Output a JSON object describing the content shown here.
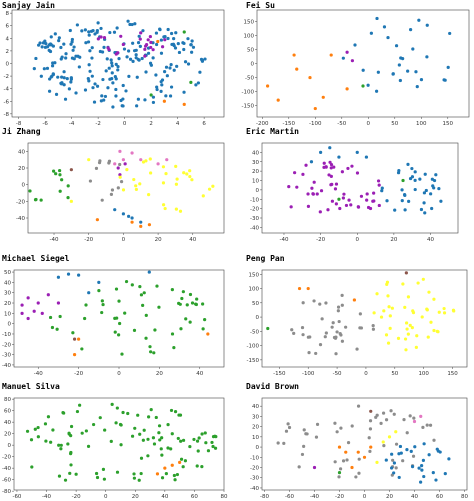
{
  "colors": {
    "blue": "#1f77b4",
    "orange": "#ff7f0e",
    "green": "#2ca02c",
    "purple": "#9b1fb4",
    "pink": "#e377c2",
    "gray": "#8c8c8c",
    "yellow": "#ffff33",
    "brown": "#8c564b"
  },
  "chart_data": [
    {
      "type": "scatter",
      "title": "Sanjay Jain",
      "xlim": [
        -8.5,
        7.5
      ],
      "ylim": [
        -8.5,
        8.5
      ],
      "xticks": [
        -8,
        -6,
        -4,
        -2,
        0,
        2,
        4,
        6
      ],
      "yticks": [
        -8,
        -6,
        -4,
        -2,
        0,
        2,
        4,
        6,
        8
      ],
      "seed": 11,
      "series": [
        {
          "color": "blue",
          "count": 230,
          "shape": "ellipse",
          "center": [
            -0.5,
            0
          ],
          "spread": [
            6.8,
            7
          ]
        },
        {
          "color": "purple",
          "count": 22,
          "shape": "ellipse",
          "center": [
            0.5,
            3
          ],
          "spread": [
            3,
            2
          ]
        },
        {
          "color": "orange",
          "count": 3,
          "points": [
            [
              2.5,
              3.5
            ],
            [
              3,
              -6
            ],
            [
              4.5,
              -6.5
            ]
          ]
        },
        {
          "color": "green",
          "count": 3,
          "points": [
            [
              4.5,
              5
            ],
            [
              5,
              -3
            ],
            [
              2,
              -5
            ]
          ]
        }
      ]
    },
    {
      "type": "scatter",
      "title": "Fei Su",
      "xlim": [
        -210,
        190
      ],
      "ylim": [
        -190,
        190
      ],
      "xticks": [
        -200,
        -150,
        -100,
        -50,
        0,
        50,
        100,
        150
      ],
      "yticks": [
        -150,
        -100,
        -50,
        0,
        50,
        100,
        150
      ],
      "seed": 23,
      "series": [
        {
          "color": "blue",
          "count": 30,
          "shape": "ellipse",
          "center": [
            60,
            30
          ],
          "spread": [
            110,
            150
          ]
        },
        {
          "color": "orange",
          "count": 9,
          "points": [
            [
              -190,
              -80
            ],
            [
              -170,
              -130
            ],
            [
              -140,
              30
            ],
            [
              -135,
              -20
            ],
            [
              -110,
              -50
            ],
            [
              -100,
              -160
            ],
            [
              -85,
              -120
            ],
            [
              -70,
              30
            ],
            [
              -40,
              -90
            ]
          ]
        },
        {
          "color": "purple",
          "count": 2,
          "points": [
            [
              -40,
              40
            ],
            [
              -30,
              10
            ]
          ]
        },
        {
          "color": "green",
          "count": 1,
          "points": [
            [
              -10,
              -80
            ]
          ]
        }
      ]
    },
    {
      "type": "scatter",
      "title": "Ji Zhang",
      "xlim": [
        -55,
        58
      ],
      "ylim": [
        -58,
        50
      ],
      "xticks": [
        -40,
        -20,
        0,
        20,
        40
      ],
      "yticks": [
        -40,
        -20,
        0,
        20,
        40
      ],
      "seed": 37,
      "series": [
        {
          "color": "green",
          "count": 12,
          "shape": "ellipse",
          "center": [
            -42,
            -5
          ],
          "spread": [
            12,
            25
          ]
        },
        {
          "color": "gray",
          "count": 12,
          "shape": "ellipse",
          "center": [
            -10,
            0
          ],
          "spread": [
            12,
            35
          ]
        },
        {
          "color": "pink",
          "count": 7,
          "points": [
            [
              -2,
              40
            ],
            [
              5,
              38
            ],
            [
              10,
              30
            ],
            [
              20,
              25
            ],
            [
              -5,
              25
            ],
            [
              25,
              30
            ],
            [
              0,
              30
            ]
          ]
        },
        {
          "color": "purple",
          "count": 3,
          "points": [
            [
              -3,
              20
            ],
            [
              -2,
              12
            ],
            [
              1,
              25
            ]
          ]
        },
        {
          "color": "yellow",
          "count": 30,
          "shape": "ellipse",
          "center": [
            25,
            0
          ],
          "spread": [
            28,
            35
          ]
        },
        {
          "color": "blue",
          "count": 5,
          "points": [
            [
              0,
              -35
            ],
            [
              5,
              -40
            ],
            [
              -5,
              -30
            ],
            [
              10,
              -45
            ],
            [
              3,
              -38
            ]
          ]
        },
        {
          "color": "orange",
          "count": 4,
          "points": [
            [
              5,
              -45
            ],
            [
              10,
              -50
            ],
            [
              15,
              -48
            ],
            [
              -15,
              -42
            ]
          ]
        },
        {
          "color": "brown",
          "count": 1,
          "points": [
            [
              -30,
              18
            ]
          ]
        },
        {
          "color": "yellow",
          "count": 2,
          "points": [
            [
              -20,
              30
            ],
            [
              -30,
              -20
            ]
          ]
        }
      ]
    },
    {
      "type": "scatter",
      "title": "Eric Martin",
      "xlim": [
        -52,
        55
      ],
      "ylim": [
        -46,
        50
      ],
      "xticks": [
        -40,
        -20,
        0,
        20,
        40
      ],
      "yticks": [
        -40,
        -30,
        -20,
        -10,
        0,
        10,
        20,
        30,
        40
      ],
      "seed": 41,
      "series": [
        {
          "color": "purple",
          "count": 55,
          "shape": "ellipse",
          "center": [
            -12,
            0
          ],
          "spread": [
            30,
            32
          ]
        },
        {
          "color": "blue",
          "count": 35,
          "shape": "ellipse",
          "center": [
            30,
            0
          ],
          "spread": [
            18,
            28
          ]
        },
        {
          "color": "green",
          "count": 2,
          "points": [
            [
              -10,
              -10
            ],
            [
              25,
              10
            ]
          ]
        },
        {
          "color": "blue",
          "count": 6,
          "points": [
            [
              -20,
              40
            ],
            [
              -15,
              45
            ],
            [
              -10,
              35
            ],
            [
              -25,
              30
            ],
            [
              0,
              40
            ],
            [
              5,
              35
            ]
          ]
        }
      ]
    },
    {
      "type": "scatter",
      "title": "Michael Siegel",
      "xlim": [
        -52,
        52
      ],
      "ylim": [
        -42,
        52
      ],
      "xticks": [
        -40,
        -20,
        0,
        20,
        40
      ],
      "yticks": [
        -40,
        -30,
        -20,
        -10,
        0,
        10,
        20,
        30,
        40,
        50
      ],
      "seed": 53,
      "series": [
        {
          "color": "green",
          "count": 55,
          "shape": "ellipse",
          "center": [
            5,
            5
          ],
          "spread": [
            40,
            38
          ]
        },
        {
          "color": "purple",
          "count": 9,
          "points": [
            [
              -48,
              18
            ],
            [
              -48,
              10
            ],
            [
              -45,
              25
            ],
            [
              -40,
              20
            ],
            [
              -42,
              12
            ],
            [
              -35,
              28
            ],
            [
              -30,
              20
            ],
            [
              -45,
              5
            ],
            [
              -38,
              10
            ]
          ]
        },
        {
          "color": "blue",
          "count": 6,
          "points": [
            [
              -30,
              45
            ],
            [
              -25,
              48
            ],
            [
              -15,
              30
            ],
            [
              -10,
              40
            ],
            [
              15,
              50
            ],
            [
              -20,
              47
            ]
          ]
        },
        {
          "color": "orange",
          "count": 3,
          "points": [
            [
              -20,
              -15
            ],
            [
              -22,
              -30
            ],
            [
              44,
              -10
            ]
          ]
        },
        {
          "color": "brown",
          "count": 1,
          "points": [
            [
              -22,
              -15
            ]
          ]
        }
      ]
    },
    {
      "type": "scatter",
      "title": "Peng Pan",
      "xlim": [
        -180,
        175
      ],
      "ylim": [
        -175,
        165
      ],
      "xticks": [
        -150,
        -100,
        -50,
        0,
        50,
        100,
        150
      ],
      "yticks": [
        -150,
        -100,
        -50,
        0,
        50,
        100,
        150
      ],
      "seed": 67,
      "series": [
        {
          "color": "gray",
          "count": 38,
          "shape": "ellipse",
          "center": [
            -60,
            -30
          ],
          "spread": [
            80,
            110
          ]
        },
        {
          "color": "yellow",
          "count": 45,
          "shape": "ellipse",
          "center": [
            75,
            10
          ],
          "spread": [
            80,
            130
          ]
        },
        {
          "color": "orange",
          "count": 3,
          "points": [
            [
              -115,
              100
            ],
            [
              -100,
              100
            ],
            [
              -20,
              60
            ]
          ]
        },
        {
          "color": "green",
          "count": 1,
          "points": [
            [
              -170,
              -40
            ]
          ]
        },
        {
          "color": "brown",
          "count": 1,
          "points": [
            [
              70,
              155
            ]
          ]
        }
      ]
    },
    {
      "type": "scatter",
      "title": "Manuel Silva",
      "xlim": [
        -62,
        80
      ],
      "ylim": [
        -78,
        82
      ],
      "xticks": [
        -60,
        -40,
        -20,
        0,
        20,
        40,
        60,
        80
      ],
      "yticks": [
        -80,
        -60,
        -40,
        -20,
        0,
        20,
        40,
        60,
        80
      ],
      "seed": 79,
      "series": [
        {
          "color": "green",
          "count": 110,
          "shape": "ellipse",
          "center": [
            8,
            0
          ],
          "spread": [
            68,
            75
          ]
        },
        {
          "color": "orange",
          "count": 4,
          "points": [
            [
              40,
              -40
            ],
            [
              45,
              -35
            ],
            [
              50,
              -30
            ],
            [
              35,
              -50
            ]
          ]
        }
      ]
    },
    {
      "type": "scatter",
      "title": "David Brown",
      "xlim": [
        -82,
        82
      ],
      "ylim": [
        -42,
        48
      ],
      "xticks": [
        -80,
        -60,
        -40,
        -20,
        0,
        20,
        40,
        60,
        80
      ],
      "yticks": [
        -40,
        -30,
        -20,
        -10,
        0,
        10,
        20,
        30,
        40
      ],
      "seed": 83,
      "series": [
        {
          "color": "gray",
          "count": 55,
          "shape": "ellipse",
          "center": [
            -5,
            5
          ],
          "spread": [
            65,
            36
          ]
        },
        {
          "color": "blue",
          "count": 28,
          "shape": "ellipse",
          "center": [
            45,
            -15
          ],
          "spread": [
            28,
            20
          ]
        },
        {
          "color": "orange",
          "count": 6,
          "points": [
            [
              -15,
              -5
            ],
            [
              -10,
              -20
            ],
            [
              -5,
              -5
            ],
            [
              0,
              -10
            ],
            [
              -20,
              0
            ],
            [
              5,
              0
            ]
          ]
        },
        {
          "color": "yellow",
          "count": 4,
          "points": [
            [
              15,
              5
            ],
            [
              20,
              10
            ],
            [
              25,
              15
            ],
            [
              10,
              -15
            ]
          ]
        },
        {
          "color": "pink",
          "count": 2,
          "points": [
            [
              40,
              25
            ],
            [
              45,
              30
            ]
          ]
        },
        {
          "color": "purple",
          "count": 1,
          "points": [
            [
              -40,
              -20
            ]
          ]
        },
        {
          "color": "green",
          "count": 1,
          "points": [
            [
              -20,
              -25
            ]
          ]
        },
        {
          "color": "brown",
          "count": 1,
          "points": [
            [
              5,
              35
            ]
          ]
        }
      ]
    }
  ]
}
